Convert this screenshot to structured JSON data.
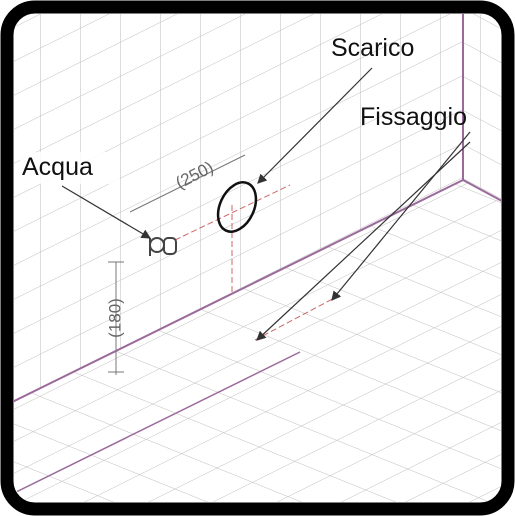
{
  "labels": {
    "scarico": "Scarico",
    "fissaggio": "Fissaggio",
    "acqua": "Acqua"
  },
  "dimensions": {
    "horizontal": "(250)",
    "vertical": "(180)"
  }
}
